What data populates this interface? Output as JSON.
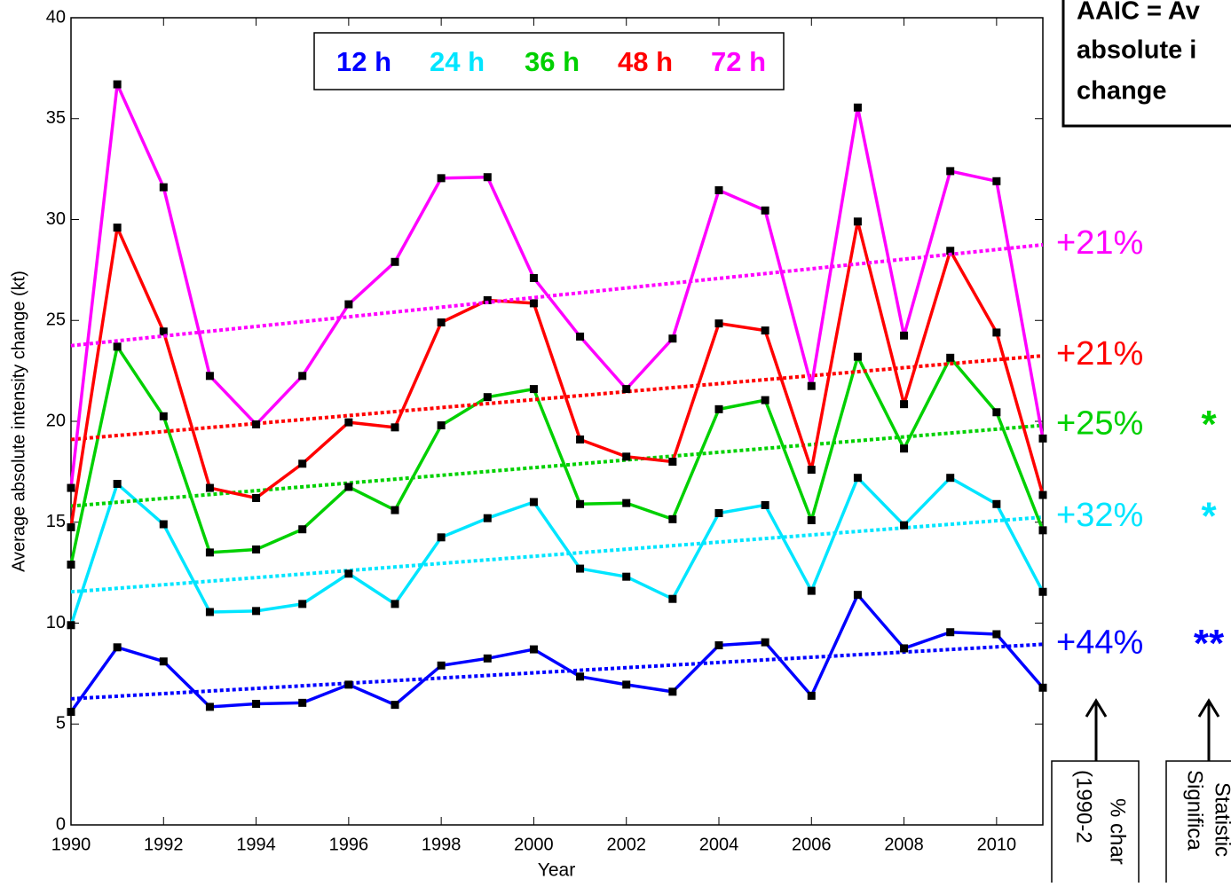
{
  "chart_data": {
    "type": "line",
    "x_label": "Year",
    "y_label": "Average absolute intensity change (kt)",
    "x": [
      1990,
      1991,
      1992,
      1993,
      1994,
      1995,
      1996,
      1997,
      1998,
      1999,
      2000,
      2001,
      2002,
      2003,
      2004,
      2005,
      2006,
      2007,
      2008,
      2009,
      2010,
      2011
    ],
    "xlim": [
      1990,
      2011
    ],
    "xticks": [
      1990,
      1992,
      1994,
      1996,
      1998,
      2000,
      2002,
      2004,
      2006,
      2008,
      2010
    ],
    "ylim": [
      0,
      40
    ],
    "yticks": [
      0,
      5,
      10,
      15,
      20,
      25,
      30,
      35,
      40
    ],
    "marker_color": "#000000",
    "trend_x": [
      1990,
      2011
    ],
    "series": [
      {
        "name": "12 h",
        "color": "#0000ff",
        "values": [
          5.6,
          8.8,
          8.1,
          5.85,
          6.0,
          6.05,
          6.95,
          5.95,
          7.9,
          8.25,
          8.7,
          7.35,
          6.95,
          6.6,
          8.9,
          9.05,
          6.4,
          11.4,
          8.75,
          9.55,
          9.45,
          6.8
        ],
        "trend": [
          6.25,
          8.95
        ],
        "change_label": "+44%",
        "significance": "**"
      },
      {
        "name": "24 h",
        "color": "#00e5ff",
        "values": [
          9.9,
          16.9,
          14.9,
          10.55,
          10.6,
          10.95,
          12.45,
          10.95,
          14.25,
          15.2,
          16.0,
          12.7,
          12.3,
          11.2,
          15.45,
          15.85,
          11.6,
          17.2,
          14.85,
          17.2,
          15.9,
          11.55
        ],
        "trend": [
          11.55,
          15.25
        ],
        "change_label": "+32%",
        "significance": "*"
      },
      {
        "name": "36 h",
        "color": "#00d000",
        "values": [
          12.9,
          23.7,
          20.25,
          13.5,
          13.65,
          14.65,
          16.75,
          15.6,
          19.8,
          21.2,
          21.6,
          15.9,
          15.95,
          15.15,
          20.6,
          21.05,
          15.1,
          23.2,
          18.65,
          23.15,
          20.45,
          14.6
        ],
        "trend": [
          15.8,
          19.8
        ],
        "change_label": "+25%",
        "significance": "*"
      },
      {
        "name": "48 h",
        "color": "#ff0000",
        "values": [
          14.75,
          29.6,
          24.45,
          16.7,
          16.2,
          17.9,
          19.95,
          19.7,
          24.9,
          26.0,
          25.85,
          19.1,
          18.25,
          18.0,
          24.85,
          24.5,
          17.6,
          29.9,
          20.85,
          28.45,
          24.4,
          16.35
        ],
        "trend": [
          19.1,
          23.25
        ],
        "change_label": "+21%"
      },
      {
        "name": "72 h",
        "color": "#ff00ff",
        "values": [
          16.7,
          36.7,
          31.6,
          22.25,
          19.85,
          22.25,
          25.8,
          27.9,
          32.05,
          32.1,
          27.1,
          24.2,
          21.6,
          24.1,
          31.45,
          30.45,
          21.75,
          35.55,
          24.25,
          32.4,
          31.9,
          19.15
        ],
        "trend": [
          23.75,
          28.75
        ],
        "change_label": "+21%"
      }
    ],
    "note_box": [
      "AAIC = Av",
      "absolute i",
      "change"
    ],
    "change_box": [
      "% char",
      "(1990-2"
    ],
    "significance_box": [
      "Statistic",
      "Significa"
    ]
  }
}
